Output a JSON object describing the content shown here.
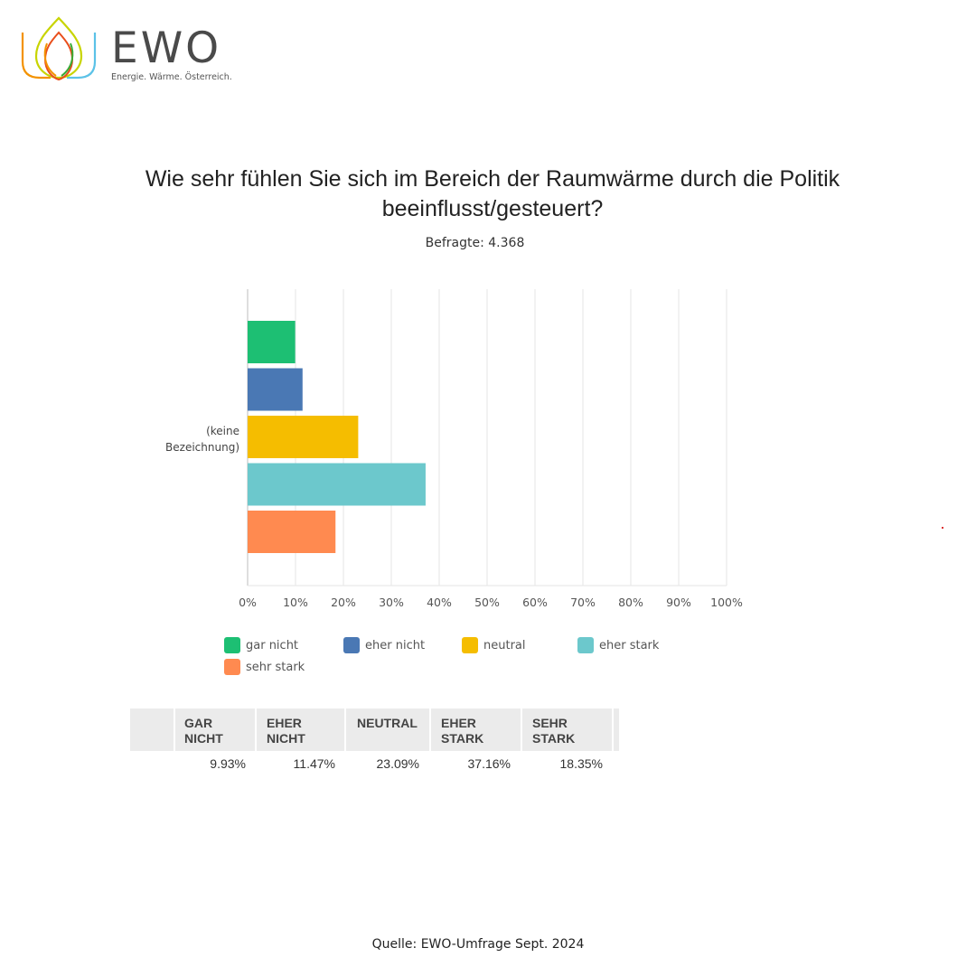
{
  "brand": {
    "name": "EWO",
    "tagline": "Energie. Wärme. Österreich."
  },
  "title": "Wie sehr fühlen Sie sich im Bereich der Raumwärme durch die Politik beeinflusst/gesteuert?",
  "subtitle": "Befragte: 4.368",
  "source": "Quelle: EWO-Umfrage Sept. 2024",
  "chart_data": {
    "type": "bar",
    "orientation": "horizontal",
    "categories": [
      "(keine Bezeichnung)"
    ],
    "category_label_lines": [
      "(keine",
      "Bezeichnung)"
    ],
    "series": [
      {
        "name": "gar nicht",
        "values": [
          9.93
        ],
        "color": "#1dbf73"
      },
      {
        "name": "eher nicht",
        "values": [
          11.47
        ],
        "color": "#4a78b4"
      },
      {
        "name": "neutral",
        "values": [
          23.09
        ],
        "color": "#f5bd00"
      },
      {
        "name": "eher stark",
        "values": [
          37.16
        ],
        "color": "#6cc8cc"
      },
      {
        "name": "sehr stark",
        "values": [
          18.35
        ],
        "color": "#ff8a50"
      }
    ],
    "xlim": [
      0,
      100
    ],
    "xticks": [
      "0%",
      "10%",
      "20%",
      "30%",
      "40%",
      "50%",
      "60%",
      "70%",
      "80%",
      "90%",
      "100%"
    ],
    "grid": true,
    "legend": "bottom"
  },
  "table": {
    "headers": [
      [
        "GAR",
        "NICHT"
      ],
      [
        "EHER",
        "NICHT"
      ],
      [
        "NEUTRAL"
      ],
      [
        "EHER",
        "STARK"
      ],
      [
        "SEHR",
        "STARK"
      ]
    ],
    "values": [
      "9.93%",
      "11.47%",
      "23.09%",
      "37.16%",
      "18.35%"
    ]
  }
}
